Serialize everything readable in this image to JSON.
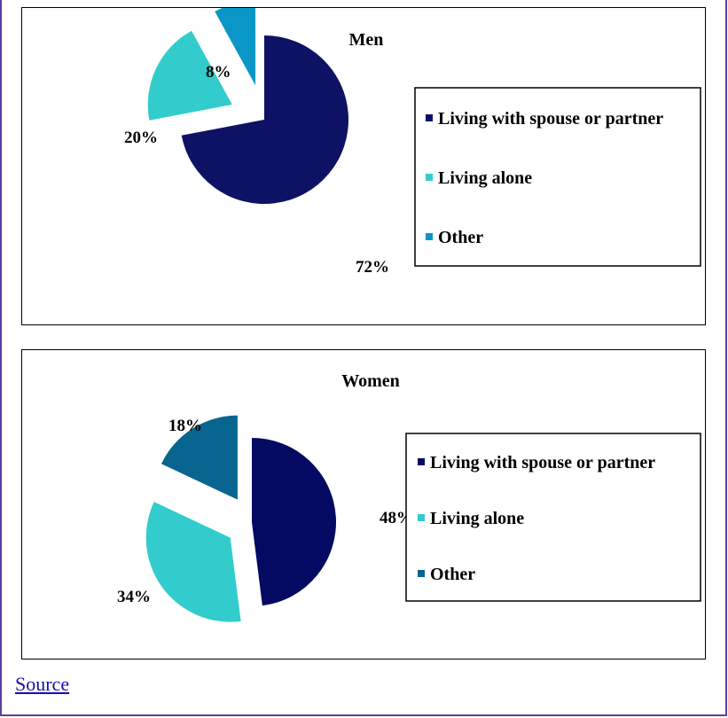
{
  "chart_data": [
    {
      "type": "pie",
      "title": "Men",
      "categories": [
        "Living with spouse or partner",
        "Living alone",
        "Other"
      ],
      "values": [
        72,
        20,
        8
      ],
      "labels": [
        "72%",
        "20%",
        "8%"
      ],
      "colors": [
        "#0e1264",
        "#33cccc",
        "#0a97c8"
      ],
      "exploded": [
        false,
        true,
        true
      ],
      "legend": "right"
    },
    {
      "type": "pie",
      "title": "Women",
      "categories": [
        "Living with spouse or partner",
        "Living alone",
        "Other"
      ],
      "values": [
        48,
        34,
        18
      ],
      "labels": [
        "48%",
        "34%",
        "18%"
      ],
      "colors": [
        "#040a62",
        "#33cccc",
        "#08658f"
      ],
      "exploded": [
        false,
        true,
        true
      ],
      "legend": "right"
    }
  ],
  "footer": {
    "link_label": "Source"
  }
}
